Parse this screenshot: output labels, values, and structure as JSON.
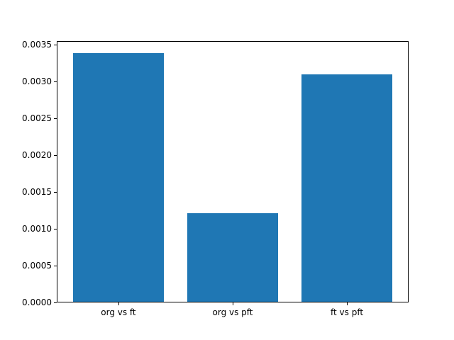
{
  "figure": {
    "background": "#ffffff",
    "frame_color": "#000000",
    "tick_color": "#000000",
    "text_color": "#000000"
  },
  "chart_data": {
    "type": "bar",
    "title": "",
    "xlabel": "",
    "ylabel": "",
    "categories": [
      "org vs ft",
      "org vs pft",
      "ft vs pft"
    ],
    "values": [
      0.00338,
      0.00121,
      0.00309
    ],
    "bar_color": "#1f77b4",
    "bar_width_fraction": 0.8,
    "ylim": [
      0,
      0.003546
    ],
    "yticks": [
      {
        "value": 0.0,
        "label": "0.0000"
      },
      {
        "value": 0.0005,
        "label": "0.0005"
      },
      {
        "value": 0.001,
        "label": "0.0010"
      },
      {
        "value": 0.0015,
        "label": "0.0015"
      },
      {
        "value": 0.002,
        "label": "0.0020"
      },
      {
        "value": 0.0025,
        "label": "0.0025"
      },
      {
        "value": 0.003,
        "label": "0.0030"
      },
      {
        "value": 0.0035,
        "label": "0.0035"
      }
    ],
    "grid": false,
    "legend": null
  }
}
